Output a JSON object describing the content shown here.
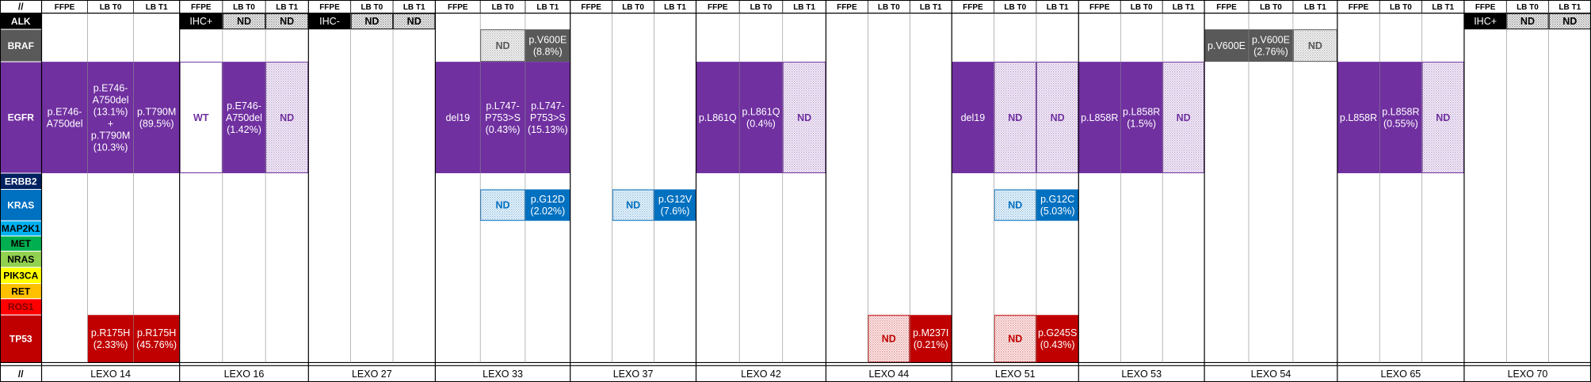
{
  "corner": "//",
  "footer_corner": "//",
  "genes": [
    {
      "name": "ALK",
      "color": "#000000",
      "text_color": "#ffffff"
    },
    {
      "name": "BRAF",
      "color": "#595959",
      "text_color": "#ffffff"
    },
    {
      "name": "EGFR",
      "color": "#7030a0",
      "text_color": "#ffffff"
    },
    {
      "name": "ERBB2",
      "color": "#002060",
      "text_color": "#ffffff"
    },
    {
      "name": "KRAS",
      "color": "#0070c0",
      "text_color": "#ffffff"
    },
    {
      "name": "MAP2K1",
      "color": "#00b0f0",
      "text_color": "#000000"
    },
    {
      "name": "MET",
      "color": "#00b050",
      "text_color": "#000000"
    },
    {
      "name": "NRAS",
      "color": "#92d050",
      "text_color": "#000000"
    },
    {
      "name": "PIK3CA",
      "color": "#ffff00",
      "text_color": "#000000"
    },
    {
      "name": "RET",
      "color": "#ffc000",
      "text_color": "#000000"
    },
    {
      "name": "ROS1",
      "color": "#ff0000",
      "text_color": "#7f0000"
    },
    {
      "name": "TP53",
      "color": "#c00000",
      "text_color": "#ffffff"
    }
  ],
  "patients": [
    {
      "name": "LEXO 14",
      "columns": [
        "FFPE",
        "LB T0",
        "LB T1"
      ],
      "cells": {
        "EGFR": [
          {
            "style": "filled",
            "lines": [
              "p.E746-",
              "A750del"
            ]
          },
          {
            "style": "filled",
            "lines": [
              "p.E746-",
              "A750del",
              "(13.1%)",
              "+",
              "p.T790M",
              "(10.3%)"
            ]
          },
          {
            "style": "filled",
            "lines": [
              "p.T790M",
              "(89.5%)"
            ]
          }
        ],
        "TP53": [
          null,
          {
            "style": "filled",
            "lines": [
              "p.R175H",
              "(2.33%)"
            ]
          },
          {
            "style": "filled",
            "lines": [
              "p.R175H",
              "(45.76%)"
            ]
          }
        ]
      }
    },
    {
      "name": "LEXO 16",
      "columns": [
        "FFPE",
        "LB T0",
        "LB T1"
      ],
      "cells": {
        "ALK": [
          {
            "style": "filled",
            "lines": [
              "IHC+"
            ]
          },
          {
            "style": "hatched",
            "lines": [
              "ND"
            ]
          },
          {
            "style": "hatched",
            "lines": [
              "ND"
            ]
          }
        ],
        "EGFR": [
          {
            "style": "plain",
            "lines": [
              "WT"
            ]
          },
          {
            "style": "filled",
            "lines": [
              "p.E746-",
              "A750del",
              "(1.42%)"
            ]
          },
          {
            "style": "hatched",
            "lines": [
              "ND"
            ]
          }
        ]
      }
    },
    {
      "name": "LEXO 27",
      "columns": [
        "FFPE",
        "LB T0",
        "LB T1"
      ],
      "cells": {
        "ALK": [
          {
            "style": "filled",
            "lines": [
              "IHC-"
            ]
          },
          {
            "style": "hatched",
            "lines": [
              "ND"
            ]
          },
          {
            "style": "hatched",
            "lines": [
              "ND"
            ]
          }
        ]
      }
    },
    {
      "name": "LEXO 33",
      "columns": [
        "FFPE",
        "LB T0",
        "LB T1"
      ],
      "cells": {
        "BRAF": [
          null,
          {
            "style": "hatched",
            "lines": [
              "ND"
            ]
          },
          {
            "style": "filled",
            "lines": [
              "p.V600E",
              "(8.8%)"
            ]
          }
        ],
        "EGFR": [
          {
            "style": "filled",
            "lines": [
              "del19"
            ]
          },
          {
            "style": "filled",
            "lines": [
              "p.L747-",
              "P753>S",
              "(0.43%)"
            ]
          },
          {
            "style": "filled",
            "lines": [
              "p.L747-",
              "P753>S",
              "(15.13%)"
            ]
          }
        ],
        "KRAS": [
          null,
          {
            "style": "hatched",
            "lines": [
              "ND"
            ]
          },
          {
            "style": "filled",
            "lines": [
              "p.G12D",
              "(2.02%)"
            ]
          }
        ]
      }
    },
    {
      "name": "LEXO 37",
      "columns": [
        "FFPE",
        "LB T0",
        "LB T1"
      ],
      "cells": {
        "KRAS": [
          null,
          {
            "style": "hatched",
            "lines": [
              "ND"
            ]
          },
          {
            "style": "filled",
            "lines": [
              "p.G12V",
              "(7.6%)"
            ]
          }
        ]
      }
    },
    {
      "name": "LEXO 42",
      "columns": [
        "FFPE",
        "LB T0",
        "LB T1"
      ],
      "cells": {
        "EGFR": [
          {
            "style": "filled",
            "lines": [
              "p.L861Q"
            ]
          },
          {
            "style": "filled",
            "lines": [
              "p.L861Q",
              "(0.4%)"
            ]
          },
          {
            "style": "hatched",
            "lines": [
              "ND"
            ]
          }
        ]
      }
    },
    {
      "name": "LEXO 44",
      "columns": [
        "FFPE",
        "LB T0",
        "LB T1"
      ],
      "cells": {
        "TP53": [
          null,
          {
            "style": "hatched",
            "lines": [
              "ND"
            ]
          },
          {
            "style": "filled",
            "lines": [
              "p.M237I",
              "(0.21%)"
            ]
          }
        ]
      }
    },
    {
      "name": "LEXO 51",
      "columns": [
        "FFPE",
        "LB T0",
        "LB T1"
      ],
      "cells": {
        "EGFR": [
          {
            "style": "filled",
            "lines": [
              "del19"
            ]
          },
          {
            "style": "hatched",
            "lines": [
              "ND"
            ]
          },
          {
            "style": "hatched",
            "lines": [
              "ND"
            ]
          }
        ],
        "KRAS": [
          null,
          {
            "style": "hatched",
            "lines": [
              "ND"
            ]
          },
          {
            "style": "filled",
            "lines": [
              "p.G12C",
              "(5.03%)"
            ]
          }
        ],
        "TP53": [
          null,
          {
            "style": "hatched",
            "lines": [
              "ND"
            ]
          },
          {
            "style": "filled",
            "lines": [
              "p.G245S",
              "(0.43%)"
            ]
          }
        ]
      }
    },
    {
      "name": "LEXO 53",
      "columns": [
        "FFPE",
        "LB T0",
        "LB T1"
      ],
      "cells": {
        "EGFR": [
          {
            "style": "filled",
            "lines": [
              "p.L858R"
            ]
          },
          {
            "style": "filled",
            "lines": [
              "p.L858R",
              "(1.5%)"
            ]
          },
          {
            "style": "hatched",
            "lines": [
              "ND"
            ]
          }
        ]
      }
    },
    {
      "name": "LEXO 54",
      "columns": [
        "FFPE",
        "LB T0",
        "LB T1"
      ],
      "cells": {
        "BRAF": [
          {
            "style": "filled",
            "lines": [
              "p.V600E"
            ]
          },
          {
            "style": "filled",
            "lines": [
              "p.V600E",
              "(2.76%)"
            ]
          },
          {
            "style": "hatched",
            "lines": [
              "ND"
            ]
          }
        ]
      }
    },
    {
      "name": "LEXO 65",
      "columns": [
        "FFPE",
        "LB T0",
        "LB T1"
      ],
      "cells": {
        "EGFR": [
          {
            "style": "filled",
            "lines": [
              "p.L858R"
            ]
          },
          {
            "style": "filled",
            "lines": [
              "p.L858R",
              "(0.55%)"
            ]
          },
          {
            "style": "hatched",
            "lines": [
              "ND"
            ]
          }
        ]
      }
    },
    {
      "name": "LEXO 70",
      "columns": [
        "FFPE",
        "LB T0",
        "LB T1"
      ],
      "cells": {
        "ALK": [
          {
            "style": "filled",
            "lines": [
              "IHC+"
            ]
          },
          {
            "style": "hatched",
            "lines": [
              "ND"
            ]
          },
          {
            "style": "hatched",
            "lines": [
              "ND"
            ]
          }
        ]
      }
    }
  ]
}
